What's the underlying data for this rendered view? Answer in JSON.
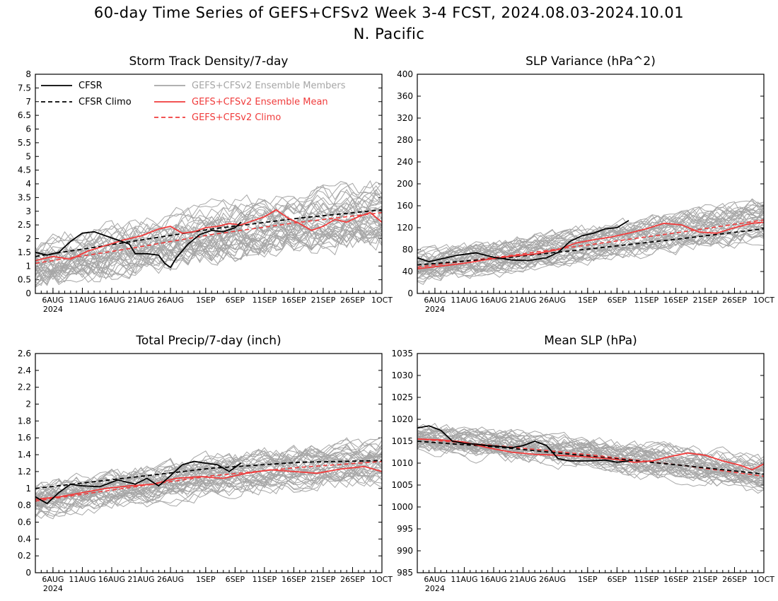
{
  "figure": {
    "title_line1": "60-day Time Series of GEFS+CFSv2 Week 3-4 FCST, 2024.08.03-2024.10.01",
    "title_line2": "N. Pacific"
  },
  "colors": {
    "cfsr": "#000000",
    "ensemble_members": "#a6a6a6",
    "ensemble_mean": "#f03c3c",
    "gefs_climo": "#f03c3c",
    "cfsr_climo": "#000000"
  },
  "legend": {
    "cfsr": "CFSR",
    "cfsr_climo": "CFSR Climo",
    "members": "GEFS+CFSv2 Ensemble Members",
    "mean": "GEFS+CFSv2 Ensemble Mean",
    "gefs_climo": "GEFS+CFSv2 Climo"
  },
  "x_axis": {
    "days": 60,
    "start": "2024-08-03",
    "end": "2024-10-01",
    "year_label": "2024",
    "ticks": [
      {
        "date": "2024-08-06",
        "label": "6AUG"
      },
      {
        "date": "2024-08-11",
        "label": "11AUG"
      },
      {
        "date": "2024-08-16",
        "label": "16AUG"
      },
      {
        "date": "2024-08-21",
        "label": "21AUG"
      },
      {
        "date": "2024-08-26",
        "label": "26AUG"
      },
      {
        "date": "2024-09-01",
        "label": "1SEP"
      },
      {
        "date": "2024-09-06",
        "label": "6SEP"
      },
      {
        "date": "2024-09-11",
        "label": "11SEP"
      },
      {
        "date": "2024-09-16",
        "label": "16SEP"
      },
      {
        "date": "2024-09-21",
        "label": "21SEP"
      },
      {
        "date": "2024-09-26",
        "label": "26SEP"
      },
      {
        "date": "2024-10-01",
        "label": "1OCT"
      }
    ]
  },
  "chart_data": [
    {
      "type": "line",
      "title": "Storm Track Density/7-day",
      "legend_placement": "top-left",
      "ylim": [
        0,
        8
      ],
      "yticks": [
        "0",
        "0.5",
        "1",
        "1.5",
        "2",
        "2.5",
        "3",
        "3.5",
        "4",
        "4.5",
        "5",
        "5.5",
        "6",
        "6.5",
        "7",
        "7.5",
        "8"
      ],
      "ensemble_members": {
        "count": 40,
        "spread": 0.85,
        "seed": 11
      },
      "series": [
        {
          "name": "CFSR",
          "role": "cfsr",
          "points": [
            [
              "2024-08-03",
              1.5
            ],
            [
              "2024-08-05",
              1.4
            ],
            [
              "2024-08-07",
              1.5
            ],
            [
              "2024-08-09",
              1.9
            ],
            [
              "2024-08-11",
              2.2
            ],
            [
              "2024-08-13",
              2.25
            ],
            [
              "2024-08-15",
              2.1
            ],
            [
              "2024-08-17",
              1.95
            ],
            [
              "2024-08-19",
              1.8
            ],
            [
              "2024-08-20",
              1.45
            ],
            [
              "2024-08-22",
              1.45
            ],
            [
              "2024-08-24",
              1.4
            ],
            [
              "2024-08-25",
              1.1
            ],
            [
              "2024-08-26",
              0.95
            ],
            [
              "2024-08-27",
              1.3
            ],
            [
              "2024-08-29",
              1.8
            ],
            [
              "2024-08-31",
              2.15
            ],
            [
              "2024-09-02",
              2.3
            ],
            [
              "2024-09-04",
              2.25
            ],
            [
              "2024-09-06",
              2.4
            ],
            [
              "2024-09-07",
              2.6
            ]
          ]
        },
        {
          "name": "CFSR Climo",
          "role": "cfsr_climo",
          "points": [
            [
              "2024-08-03",
              1.35
            ],
            [
              "2024-08-18",
              1.85
            ],
            [
              "2024-09-02",
              2.35
            ],
            [
              "2024-09-17",
              2.75
            ],
            [
              "2024-10-01",
              3.05
            ]
          ]
        },
        {
          "name": "GEFS+CFSv2 Ensemble Mean",
          "role": "mean",
          "points": [
            [
              "2024-08-03",
              1.2
            ],
            [
              "2024-08-06",
              1.35
            ],
            [
              "2024-08-09",
              1.25
            ],
            [
              "2024-08-12",
              1.55
            ],
            [
              "2024-08-15",
              1.75
            ],
            [
              "2024-08-18",
              1.95
            ],
            [
              "2024-08-21",
              2.1
            ],
            [
              "2024-08-24",
              2.35
            ],
            [
              "2024-08-26",
              2.45
            ],
            [
              "2024-08-28",
              2.2
            ],
            [
              "2024-08-30",
              2.25
            ],
            [
              "2024-09-01",
              2.4
            ],
            [
              "2024-09-03",
              2.45
            ],
            [
              "2024-09-05",
              2.55
            ],
            [
              "2024-09-07",
              2.5
            ],
            [
              "2024-09-09",
              2.65
            ],
            [
              "2024-09-11",
              2.8
            ],
            [
              "2024-09-13",
              3.05
            ],
            [
              "2024-09-15",
              2.75
            ],
            [
              "2024-09-17",
              2.55
            ],
            [
              "2024-09-19",
              2.3
            ],
            [
              "2024-09-21",
              2.45
            ],
            [
              "2024-09-23",
              2.7
            ],
            [
              "2024-09-25",
              2.6
            ],
            [
              "2024-09-27",
              2.8
            ],
            [
              "2024-09-29",
              2.95
            ],
            [
              "2024-10-01",
              2.6
            ]
          ]
        },
        {
          "name": "GEFS+CFSv2 Climo",
          "role": "gefs_climo",
          "points": [
            [
              "2024-08-03",
              1.1
            ],
            [
              "2024-08-18",
              1.6
            ],
            [
              "2024-09-02",
              2.15
            ],
            [
              "2024-09-17",
              2.6
            ],
            [
              "2024-10-01",
              2.95
            ]
          ]
        }
      ]
    },
    {
      "type": "line",
      "title": "SLP Variance (hPa^2)",
      "ylim": [
        0,
        400
      ],
      "yticks": [
        "0",
        "40",
        "80",
        "120",
        "160",
        "200",
        "240",
        "280",
        "320",
        "360",
        "400"
      ],
      "ensemble_members": {
        "count": 40,
        "spread": 28,
        "seed": 23
      },
      "series": [
        {
          "name": "CFSR",
          "role": "cfsr",
          "points": [
            [
              "2024-08-03",
              65
            ],
            [
              "2024-08-05",
              58
            ],
            [
              "2024-08-07",
              63
            ],
            [
              "2024-08-10",
              70
            ],
            [
              "2024-08-13",
              74
            ],
            [
              "2024-08-16",
              66
            ],
            [
              "2024-08-19",
              61
            ],
            [
              "2024-08-22",
              60
            ],
            [
              "2024-08-25",
              65
            ],
            [
              "2024-08-27",
              75
            ],
            [
              "2024-08-29",
              95
            ],
            [
              "2024-08-31",
              105
            ],
            [
              "2024-09-02",
              110
            ],
            [
              "2024-09-04",
              118
            ],
            [
              "2024-09-06",
              120
            ],
            [
              "2024-09-08",
              133
            ]
          ]
        },
        {
          "name": "CFSR Climo",
          "role": "cfsr_climo",
          "points": [
            [
              "2024-08-03",
              52
            ],
            [
              "2024-08-18",
              65
            ],
            [
              "2024-09-02",
              82
            ],
            [
              "2024-09-17",
              100
            ],
            [
              "2024-10-01",
              118
            ]
          ]
        },
        {
          "name": "GEFS+CFSv2 Ensemble Mean",
          "role": "mean",
          "points": [
            [
              "2024-08-03",
              45
            ],
            [
              "2024-08-07",
              50
            ],
            [
              "2024-08-11",
              55
            ],
            [
              "2024-08-15",
              62
            ],
            [
              "2024-08-19",
              68
            ],
            [
              "2024-08-23",
              72
            ],
            [
              "2024-08-27",
              80
            ],
            [
              "2024-08-30",
              92
            ],
            [
              "2024-09-02",
              98
            ],
            [
              "2024-09-05",
              103
            ],
            [
              "2024-09-08",
              110
            ],
            [
              "2024-09-11",
              118
            ],
            [
              "2024-09-14",
              128
            ],
            [
              "2024-09-17",
              125
            ],
            [
              "2024-09-20",
              112
            ],
            [
              "2024-09-23",
              110
            ],
            [
              "2024-09-26",
              120
            ],
            [
              "2024-09-29",
              128
            ],
            [
              "2024-10-01",
              130
            ]
          ]
        },
        {
          "name": "GEFS+CFSv2 Climo",
          "role": "gefs_climo",
          "points": [
            [
              "2024-08-03",
              48
            ],
            [
              "2024-08-18",
              68
            ],
            [
              "2024-09-02",
              90
            ],
            [
              "2024-09-17",
              112
            ],
            [
              "2024-10-01",
              134
            ]
          ]
        }
      ]
    },
    {
      "type": "line",
      "title": "Total Precip/7-day (inch)",
      "ylim": [
        0,
        2.6
      ],
      "yticks": [
        "0",
        "0.2",
        "0.4",
        "0.6",
        "0.8",
        "1",
        "1.2",
        "1.4",
        "1.6",
        "1.8",
        "2",
        "2.2",
        "2.4",
        "2.6"
      ],
      "ensemble_members": {
        "count": 40,
        "spread": 0.2,
        "seed": 37
      },
      "series": [
        {
          "name": "CFSR",
          "role": "cfsr",
          "points": [
            [
              "2024-08-03",
              0.9
            ],
            [
              "2024-08-05",
              0.82
            ],
            [
              "2024-08-07",
              0.95
            ],
            [
              "2024-08-09",
              1.05
            ],
            [
              "2024-08-11",
              1.03
            ],
            [
              "2024-08-14",
              1.02
            ],
            [
              "2024-08-17",
              1.1
            ],
            [
              "2024-08-20",
              1.05
            ],
            [
              "2024-08-22",
              1.12
            ],
            [
              "2024-08-24",
              1.03
            ],
            [
              "2024-08-26",
              1.15
            ],
            [
              "2024-08-28",
              1.28
            ],
            [
              "2024-08-30",
              1.32
            ],
            [
              "2024-09-01",
              1.3
            ],
            [
              "2024-09-03",
              1.28
            ],
            [
              "2024-09-05",
              1.2
            ],
            [
              "2024-09-07",
              1.3
            ]
          ]
        },
        {
          "name": "CFSR Climo",
          "role": "cfsr_climo",
          "points": [
            [
              "2024-08-03",
              1.0
            ],
            [
              "2024-08-18",
              1.12
            ],
            [
              "2024-09-02",
              1.24
            ],
            [
              "2024-09-17",
              1.31
            ],
            [
              "2024-10-01",
              1.33
            ]
          ]
        },
        {
          "name": "GEFS+CFSv2 Ensemble Mean",
          "role": "mean",
          "points": [
            [
              "2024-08-03",
              0.87
            ],
            [
              "2024-08-07",
              0.9
            ],
            [
              "2024-08-11",
              0.95
            ],
            [
              "2024-08-15",
              1.0
            ],
            [
              "2024-08-19",
              1.03
            ],
            [
              "2024-08-23",
              1.05
            ],
            [
              "2024-08-27",
              1.12
            ],
            [
              "2024-08-31",
              1.14
            ],
            [
              "2024-09-04",
              1.12
            ],
            [
              "2024-09-08",
              1.18
            ],
            [
              "2024-09-12",
              1.22
            ],
            [
              "2024-09-16",
              1.2
            ],
            [
              "2024-09-20",
              1.18
            ],
            [
              "2024-09-24",
              1.23
            ],
            [
              "2024-09-28",
              1.26
            ],
            [
              "2024-10-01",
              1.2
            ]
          ]
        },
        {
          "name": "GEFS+CFSv2 Climo",
          "role": "gefs_climo",
          "points": [
            [
              "2024-08-03",
              0.85
            ],
            [
              "2024-08-18",
              1.0
            ],
            [
              "2024-09-02",
              1.15
            ],
            [
              "2024-09-17",
              1.25
            ],
            [
              "2024-10-01",
              1.32
            ]
          ]
        }
      ]
    },
    {
      "type": "line",
      "title": "Mean SLP (hPa)",
      "ylim": [
        985,
        1035
      ],
      "yticks": [
        "985",
        "990",
        "995",
        "1000",
        "1005",
        "1010",
        "1015",
        "1020",
        "1025",
        "1030",
        "1035"
      ],
      "ensemble_members": {
        "count": 40,
        "spread": 3.2,
        "seed": 51
      },
      "series": [
        {
          "name": "CFSR",
          "role": "cfsr",
          "points": [
            [
              "2024-08-03",
              1018
            ],
            [
              "2024-08-05",
              1018.5
            ],
            [
              "2024-08-07",
              1017.5
            ],
            [
              "2024-08-09",
              1015
            ],
            [
              "2024-08-11",
              1014.5
            ],
            [
              "2024-08-13",
              1014.3
            ],
            [
              "2024-08-15",
              1014
            ],
            [
              "2024-08-17",
              1013.8
            ],
            [
              "2024-08-19",
              1013.5
            ],
            [
              "2024-08-21",
              1014
            ],
            [
              "2024-08-23",
              1015
            ],
            [
              "2024-08-25",
              1014
            ],
            [
              "2024-08-27",
              1011
            ],
            [
              "2024-08-29",
              1010.5
            ],
            [
              "2024-09-01",
              1010.5
            ],
            [
              "2024-09-04",
              1010.7
            ],
            [
              "2024-09-06",
              1010.2
            ],
            [
              "2024-09-08",
              1010.5
            ]
          ]
        },
        {
          "name": "CFSR Climo",
          "role": "cfsr_climo",
          "points": [
            [
              "2024-08-03",
              1015
            ],
            [
              "2024-08-18",
              1013.5
            ],
            [
              "2024-09-02",
              1011.5
            ],
            [
              "2024-09-17",
              1009.5
            ],
            [
              "2024-10-01",
              1007.5
            ]
          ]
        },
        {
          "name": "GEFS+CFSv2 Ensemble Mean",
          "role": "mean",
          "points": [
            [
              "2024-08-03",
              1015.5
            ],
            [
              "2024-08-07",
              1015.3
            ],
            [
              "2024-08-11",
              1014.8
            ],
            [
              "2024-08-15",
              1013.5
            ],
            [
              "2024-08-19",
              1012.5
            ],
            [
              "2024-08-23",
              1012
            ],
            [
              "2024-08-27",
              1011.8
            ],
            [
              "2024-08-31",
              1011.5
            ],
            [
              "2024-09-03",
              1011.2
            ],
            [
              "2024-09-06",
              1010.8
            ],
            [
              "2024-09-09",
              1010.2
            ],
            [
              "2024-09-12",
              1010.5
            ],
            [
              "2024-09-15",
              1011.5
            ],
            [
              "2024-09-18",
              1012.3
            ],
            [
              "2024-09-21",
              1011.8
            ],
            [
              "2024-09-24",
              1010.5
            ],
            [
              "2024-09-27",
              1009.5
            ],
            [
              "2024-09-29",
              1008.5
            ],
            [
              "2024-10-01",
              1009.8
            ]
          ]
        },
        {
          "name": "GEFS+CFSv2 Climo",
          "role": "gefs_climo",
          "points": [
            [
              "2024-08-03",
              1015.5
            ],
            [
              "2024-08-18",
              1013.8
            ],
            [
              "2024-09-02",
              1011.8
            ],
            [
              "2024-09-17",
              1009.5
            ],
            [
              "2024-10-01",
              1007
            ]
          ]
        }
      ]
    }
  ]
}
